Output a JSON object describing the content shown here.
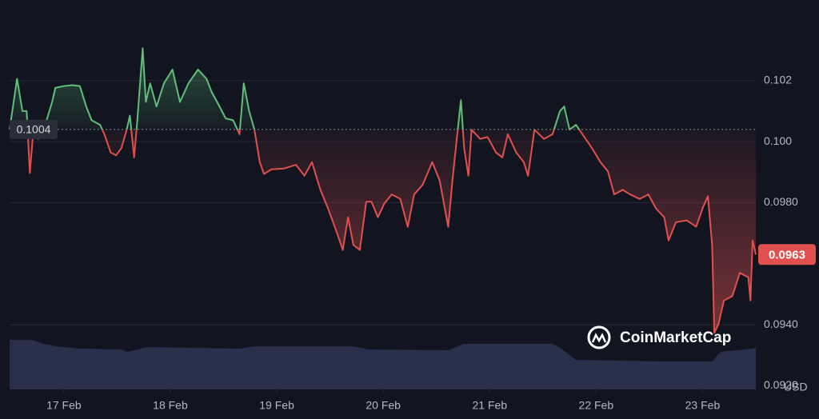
{
  "chart_data": {
    "type": "line",
    "x": [
      16.49,
      16.56,
      16.61,
      16.65,
      16.68,
      16.71,
      16.76,
      16.81,
      16.89,
      16.92,
      17.0,
      17.08,
      17.15,
      17.21,
      17.26,
      17.34,
      17.38,
      17.44,
      17.49,
      17.54,
      17.59,
      17.62,
      17.66,
      17.69,
      17.74,
      17.77,
      17.81,
      17.87,
      17.94,
      18.02,
      18.09,
      18.17,
      18.26,
      18.34,
      18.39,
      18.44,
      18.52,
      18.59,
      18.65,
      18.69,
      18.74,
      18.79,
      18.84,
      18.88,
      18.95,
      19.07,
      19.18,
      19.26,
      19.33,
      19.41,
      19.48,
      19.56,
      19.62,
      19.67,
      19.72,
      19.78,
      19.84,
      19.89,
      19.95,
      20.01,
      20.08,
      20.16,
      20.23,
      20.29,
      20.37,
      20.46,
      20.53,
      20.61,
      20.65,
      20.7,
      20.73,
      20.76,
      20.8,
      20.83,
      20.91,
      20.98,
      21.06,
      21.12,
      21.17,
      21.25,
      21.32,
      21.36,
      21.42,
      21.51,
      21.59,
      21.66,
      21.7,
      21.75,
      21.81,
      21.89,
      21.96,
      22.04,
      22.11,
      22.17,
      22.25,
      22.32,
      22.41,
      22.49,
      22.56,
      22.64,
      22.68,
      22.75,
      22.85,
      22.94,
      23.0,
      23.05,
      23.09,
      23.11,
      23.15,
      23.2,
      23.28,
      23.35,
      23.43,
      23.45,
      23.47,
      23.5
    ],
    "values": [
      0.10039,
      0.10206,
      0.101,
      0.101,
      0.09897,
      0.10024,
      0.10009,
      0.10039,
      0.1013,
      0.10176,
      0.10182,
      0.10185,
      0.10182,
      0.10115,
      0.1007,
      0.10055,
      0.10024,
      0.09964,
      0.09955,
      0.09979,
      0.10039,
      0.10085,
      0.09948,
      0.1007,
      0.10306,
      0.1013,
      0.10191,
      0.10115,
      0.10191,
      0.10236,
      0.1013,
      0.10191,
      0.10236,
      0.10206,
      0.10161,
      0.1013,
      0.10076,
      0.1007,
      0.10024,
      0.10191,
      0.101,
      0.10039,
      0.09933,
      0.09894,
      0.09909,
      0.09912,
      0.09924,
      0.09888,
      0.09933,
      0.09842,
      0.09782,
      0.09706,
      0.09645,
      0.09752,
      0.09661,
      0.09645,
      0.09803,
      0.09803,
      0.09752,
      0.09797,
      0.09827,
      0.09812,
      0.09721,
      0.09827,
      0.09858,
      0.09933,
      0.09873,
      0.09721,
      0.09873,
      0.10039,
      0.10136,
      0.09979,
      0.09888,
      0.10039,
      0.10009,
      0.10015,
      0.09964,
      0.09948,
      0.10024,
      0.09964,
      0.09933,
      0.09888,
      0.10039,
      0.10009,
      0.10024,
      0.101,
      0.10115,
      0.10039,
      0.10055,
      0.10015,
      0.09979,
      0.09933,
      0.09903,
      0.09827,
      0.09842,
      0.09827,
      0.09812,
      0.09827,
      0.09782,
      0.09752,
      0.09676,
      0.09736,
      0.09742,
      0.09721,
      0.09782,
      0.09821,
      0.09661,
      0.09373,
      0.09403,
      0.09479,
      0.09494,
      0.0957,
      0.09555,
      0.09479,
      0.09676,
      0.0963
    ],
    "up_color": "#5fbf7a",
    "down_color": "#e0504f",
    "baseline": 0.1004,
    "current": 0.0963,
    "xlim": [
      16.49,
      23.5
    ],
    "xticks": [
      {
        "value": 17,
        "label": "17 Feb"
      },
      {
        "value": 18,
        "label": "18 Feb"
      },
      {
        "value": 19,
        "label": "19 Feb"
      },
      {
        "value": 20,
        "label": "20 Feb"
      },
      {
        "value": 21,
        "label": "21 Feb"
      },
      {
        "value": 22,
        "label": "22 Feb"
      },
      {
        "value": 23,
        "label": "23 Feb"
      }
    ],
    "ylim": [
      0.09188,
      0.10464
    ],
    "yticks": [
      0.102,
      {
        "value": 0.1,
        "label": "0.100"
      },
      {
        "value": 0.098,
        "label": "0.0980"
      },
      {
        "value": 0.094,
        "label": "0.0940"
      },
      {
        "value": 0.092,
        "label": "0.0920"
      }
    ],
    "grid": true,
    "unit": "USD",
    "watermark": "CoinMarketCap",
    "volume": {
      "x": [
        16.49,
        16.7,
        16.81,
        16.92,
        17.15,
        17.53,
        17.6,
        17.79,
        18.65,
        18.8,
        19.71,
        19.86,
        20.61,
        20.76,
        21.59,
        21.66,
        21.81,
        22.64,
        23.09,
        23.17,
        23.47,
        23.5
      ],
      "values": [
        62,
        62,
        57,
        54,
        51,
        50,
        47,
        53,
        51,
        54,
        54,
        50,
        49,
        57,
        57,
        52,
        37,
        35,
        35,
        47,
        51,
        53
      ],
      "color": "#2d3554",
      "axis": "y2"
    },
    "y2lim": [
      0,
      100
    ]
  }
}
